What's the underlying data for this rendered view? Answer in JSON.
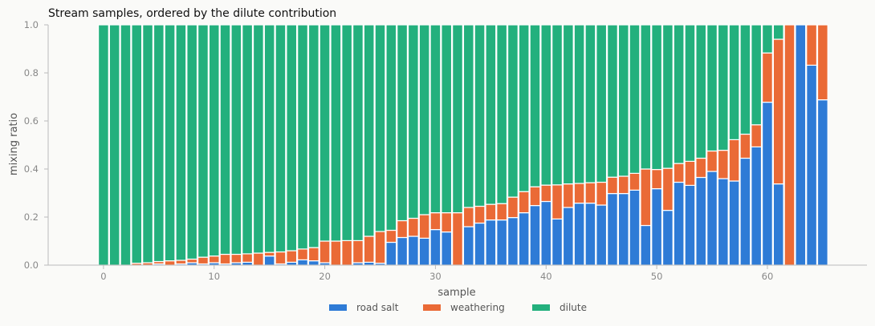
{
  "chart_data": {
    "type": "bar",
    "stacked": true,
    "title": "Stream samples, ordered by the dilute contribution",
    "xlabel": "sample",
    "ylabel": "mixing ratio",
    "xlim": [
      -5,
      69
    ],
    "ylim": [
      0,
      1
    ],
    "xticks": [
      0,
      10,
      20,
      30,
      40,
      50,
      60
    ],
    "yticks": [
      0.0,
      0.2,
      0.4,
      0.6,
      0.8,
      1.0
    ],
    "ytick_labels": [
      "0.0",
      "0.2",
      "0.4",
      "0.6",
      "0.8",
      "1.0"
    ],
    "grid": false,
    "legend_position": "bottom",
    "x": [
      0,
      1,
      2,
      3,
      4,
      5,
      6,
      7,
      8,
      9,
      10,
      11,
      12,
      13,
      14,
      15,
      16,
      17,
      18,
      19,
      20,
      21,
      22,
      23,
      24,
      25,
      26,
      27,
      28,
      29,
      30,
      31,
      32,
      33,
      34,
      35,
      36,
      37,
      38,
      39,
      40,
      41,
      42,
      43,
      44,
      45,
      46,
      47,
      48,
      49,
      50,
      51,
      52,
      53,
      54,
      55,
      56,
      57,
      58,
      59,
      60,
      61,
      62,
      63,
      64,
      65
    ],
    "series": [
      {
        "name": "road salt",
        "color": "#2e7bd6",
        "values": [
          0.0,
          0.0,
          0.0,
          0.0,
          0.0,
          0.005,
          0.0,
          0.005,
          0.01,
          0.005,
          0.01,
          0.005,
          0.01,
          0.012,
          0.0,
          0.038,
          0.005,
          0.012,
          0.022,
          0.018,
          0.01,
          0.0,
          0.0,
          0.01,
          0.012,
          0.008,
          0.095,
          0.115,
          0.12,
          0.112,
          0.148,
          0.138,
          0.0,
          0.16,
          0.175,
          0.188,
          0.188,
          0.198,
          0.218,
          0.248,
          0.265,
          0.192,
          0.24,
          0.258,
          0.258,
          0.25,
          0.298,
          0.298,
          0.312,
          0.165,
          0.318,
          0.228,
          0.345,
          0.332,
          0.365,
          0.39,
          0.36,
          0.35,
          0.445,
          0.492,
          0.678,
          0.338,
          0.0,
          1.0,
          0.832,
          0.688
        ]
      },
      {
        "name": "weathering",
        "color": "#ea6a36",
        "values": [
          0.0,
          0.0,
          0.0,
          0.008,
          0.01,
          0.01,
          0.018,
          0.015,
          0.015,
          0.028,
          0.028,
          0.04,
          0.035,
          0.035,
          0.05,
          0.015,
          0.05,
          0.048,
          0.045,
          0.055,
          0.09,
          0.1,
          0.102,
          0.092,
          0.108,
          0.132,
          0.05,
          0.07,
          0.075,
          0.098,
          0.07,
          0.08,
          0.218,
          0.08,
          0.07,
          0.065,
          0.068,
          0.085,
          0.088,
          0.078,
          0.068,
          0.142,
          0.098,
          0.082,
          0.085,
          0.095,
          0.068,
          0.072,
          0.07,
          0.235,
          0.08,
          0.175,
          0.078,
          0.1,
          0.08,
          0.085,
          0.118,
          0.172,
          0.1,
          0.092,
          0.205,
          0.602,
          1.0,
          0.0,
          0.168,
          0.312
        ]
      },
      {
        "name": "dilute",
        "color": "#23b07d",
        "values": [
          1.0,
          1.0,
          1.0,
          0.992,
          0.99,
          0.985,
          0.982,
          0.98,
          0.975,
          0.967,
          0.962,
          0.955,
          0.955,
          0.953,
          0.95,
          0.947,
          0.945,
          0.94,
          0.933,
          0.927,
          0.9,
          0.9,
          0.898,
          0.898,
          0.88,
          0.86,
          0.855,
          0.815,
          0.805,
          0.79,
          0.782,
          0.782,
          0.782,
          0.76,
          0.755,
          0.747,
          0.744,
          0.717,
          0.694,
          0.674,
          0.667,
          0.666,
          0.662,
          0.66,
          0.657,
          0.655,
          0.634,
          0.63,
          0.618,
          0.6,
          0.602,
          0.597,
          0.577,
          0.568,
          0.555,
          0.525,
          0.522,
          0.478,
          0.455,
          0.416,
          0.117,
          0.06,
          0.0,
          0.0,
          0.0,
          0.0
        ]
      }
    ]
  }
}
